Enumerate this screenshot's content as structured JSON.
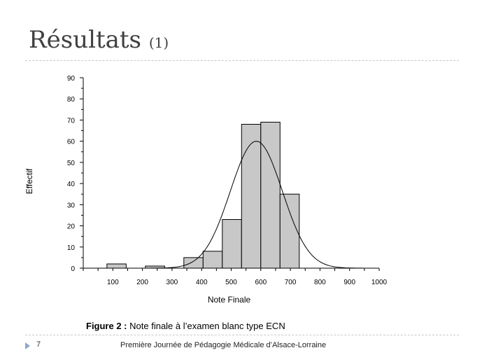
{
  "slide": {
    "title": "Résultats",
    "title_number": "(1)",
    "caption_prefix": "Figure 2 :",
    "caption_text": "Note finale à l’examen blanc type ECN",
    "page_number": "7",
    "footer": "Première Journée de Pédagogie Médicale d’Alsace-Lorraine"
  },
  "chart_data": {
    "type": "bar",
    "subtype": "histogram",
    "title": "",
    "xlabel": "Note Finale",
    "ylabel": "Effectif",
    "xlim": [
      0,
      1000
    ],
    "ylim": [
      0,
      90
    ],
    "x_ticks": [
      100,
      200,
      300,
      400,
      500,
      600,
      700,
      800,
      900,
      1000
    ],
    "y_ticks": [
      0,
      10,
      20,
      30,
      40,
      50,
      60,
      70,
      80,
      90
    ],
    "grid": false,
    "legend": "none",
    "bar_color": "#c8c8c8",
    "bins": [
      {
        "start": 80,
        "end": 145,
        "count": 2
      },
      {
        "start": 145,
        "end": 210,
        "count": 0
      },
      {
        "start": 210,
        "end": 275,
        "count": 1
      },
      {
        "start": 275,
        "end": 340,
        "count": 0
      },
      {
        "start": 340,
        "end": 405,
        "count": 5
      },
      {
        "start": 405,
        "end": 470,
        "count": 8
      },
      {
        "start": 470,
        "end": 535,
        "count": 23
      },
      {
        "start": 535,
        "end": 600,
        "count": 68
      },
      {
        "start": 600,
        "end": 665,
        "count": 69
      },
      {
        "start": 665,
        "end": 730,
        "count": 35
      }
    ],
    "curve": {
      "type": "normal",
      "mean": 585,
      "sd": 88,
      "peak": 60
    }
  }
}
